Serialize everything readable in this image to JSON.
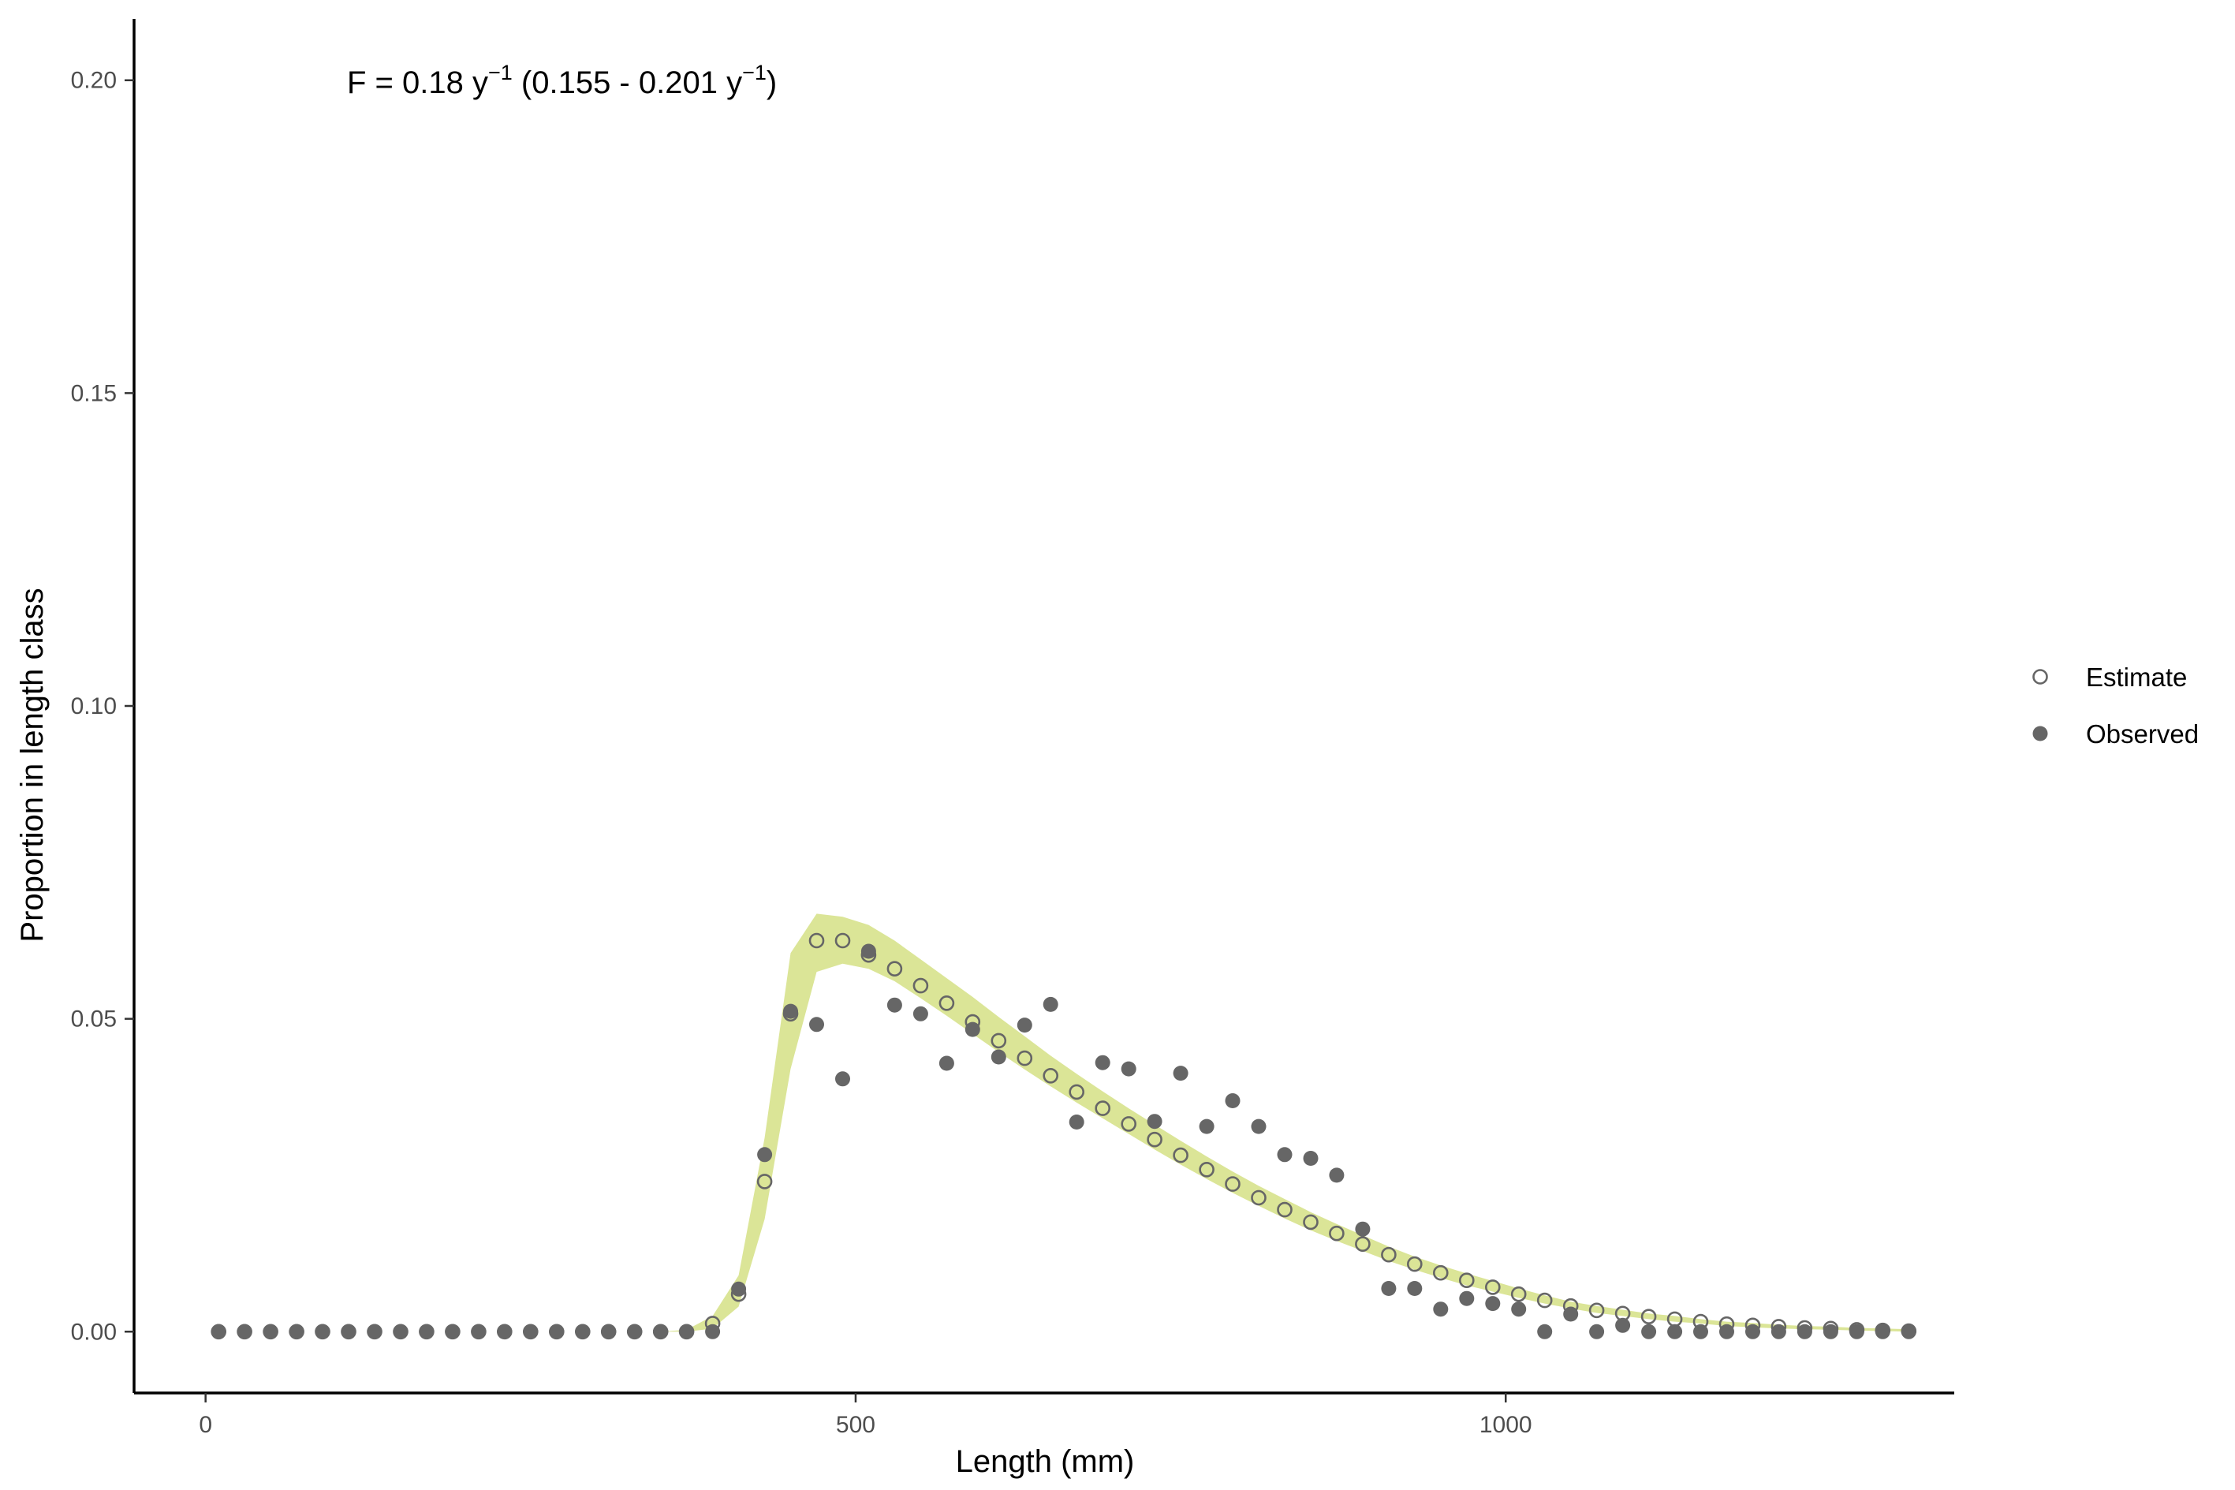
{
  "chart_data": {
    "type": "scatter",
    "annotation": {
      "prefix": "F = 0.18 y",
      "sup1": "−1",
      "middle": " (0.155 - 0.201 y",
      "sup2": "−1",
      "suffix": ")"
    },
    "xlabel": "Length (mm)",
    "ylabel": "Proportion in length class",
    "xlim": [
      -55,
      1345
    ],
    "ylim": [
      -0.0098,
      0.2098
    ],
    "xticks": [
      0,
      500,
      1000
    ],
    "yticks": [
      "0.00",
      "0.05",
      "0.10",
      "0.15",
      "0.20"
    ],
    "grid": false,
    "legend_position": "right",
    "band_color": "#dbe597",
    "point_color": "#666666",
    "legend": [
      {
        "name": "Estimate",
        "marker": "open-circle"
      },
      {
        "name": "Observed",
        "marker": "filled-circle"
      }
    ],
    "x": [
      10,
      30,
      50,
      70,
      90,
      110,
      130,
      150,
      170,
      190,
      210,
      230,
      250,
      270,
      290,
      310,
      330,
      350,
      370,
      390,
      410,
      430,
      450,
      470,
      490,
      510,
      530,
      550,
      570,
      590,
      610,
      630,
      650,
      670,
      690,
      710,
      730,
      750,
      770,
      790,
      810,
      830,
      850,
      870,
      890,
      910,
      930,
      950,
      970,
      990,
      1010,
      1030,
      1050,
      1070,
      1090,
      1110,
      1130,
      1150,
      1170,
      1190,
      1210,
      1230,
      1250,
      1270,
      1290,
      1310
    ],
    "series": [
      {
        "name": "Estimate",
        "values": [
          0,
          0,
          0,
          0,
          0,
          0,
          0,
          0,
          0,
          0,
          0,
          0,
          0,
          0,
          0,
          0,
          0,
          0,
          0,
          0.0013,
          0.006,
          0.024,
          0.0508,
          0.0625,
          0.0625,
          0.0602,
          0.058,
          0.0553,
          0.0525,
          0.0495,
          0.0465,
          0.0437,
          0.0409,
          0.0383,
          0.0357,
          0.0332,
          0.0307,
          0.0282,
          0.0259,
          0.0236,
          0.0214,
          0.0195,
          0.0175,
          0.0157,
          0.014,
          0.0123,
          0.0108,
          0.0094,
          0.0082,
          0.0071,
          0.006,
          0.005,
          0.0041,
          0.0034,
          0.0029,
          0.0024,
          0.002,
          0.0016,
          0.0012,
          0.001,
          0.0008,
          0.0006,
          0.0005,
          0.0003,
          0.0002,
          0.0001
        ]
      },
      {
        "name": "Observed",
        "values": [
          0,
          0,
          0,
          0,
          0,
          0,
          0,
          0,
          0,
          0,
          0,
          0,
          0,
          0,
          0,
          0,
          0,
          0,
          0,
          0,
          0.0068,
          0.0283,
          0.0512,
          0.0491,
          0.0404,
          0.0608,
          0.0522,
          0.0508,
          0.0429,
          0.0483,
          0.0439,
          0.049,
          0.0523,
          0.0335,
          0.043,
          0.042,
          0.0336,
          0.0413,
          0.0328,
          0.0369,
          0.0328,
          0.0283,
          0.0277,
          0.025,
          0.0164,
          0.0069,
          0.0069,
          0.0036,
          0.0053,
          0.0045,
          0.0036,
          0,
          0.0028,
          0,
          0.001,
          0,
          0,
          0,
          0,
          0,
          0,
          0,
          0,
          0,
          0,
          0
        ]
      }
    ],
    "band": {
      "name": "confidence interval",
      "lower": [
        0,
        0,
        0,
        0,
        0,
        0,
        0,
        0,
        0,
        0,
        0,
        0,
        0,
        0,
        0,
        0,
        0,
        0,
        0,
        0.0005,
        0.004,
        0.018,
        0.042,
        0.0575,
        0.0588,
        0.058,
        0.056,
        0.0533,
        0.0505,
        0.0476,
        0.0447,
        0.0419,
        0.0392,
        0.0366,
        0.0341,
        0.0316,
        0.0291,
        0.0267,
        0.0244,
        0.0222,
        0.0201,
        0.0181,
        0.0162,
        0.0145,
        0.0129,
        0.0113,
        0.0099,
        0.0086,
        0.0074,
        0.0064,
        0.0054,
        0.0045,
        0.0037,
        0.003,
        0.0025,
        0.002,
        0.0016,
        0.0013,
        0.0009,
        0.0007,
        0.0005,
        0.0004,
        0.0003,
        0.0002,
        0.0001,
        0
      ],
      "upper": [
        0,
        0,
        0,
        0,
        0,
        0,
        0,
        0,
        0,
        0,
        0,
        0,
        0,
        0,
        0,
        0,
        0,
        0,
        0.0003,
        0.0025,
        0.009,
        0.031,
        0.0605,
        0.0668,
        0.0663,
        0.065,
        0.0625,
        0.0595,
        0.0565,
        0.0535,
        0.0503,
        0.0472,
        0.0441,
        0.0412,
        0.0384,
        0.0357,
        0.0331,
        0.0305,
        0.028,
        0.0256,
        0.0233,
        0.0212,
        0.0191,
        0.0172,
        0.0154,
        0.0136,
        0.012,
        0.0106,
        0.0093,
        0.0081,
        0.0069,
        0.0058,
        0.0048,
        0.0041,
        0.0035,
        0.0029,
        0.0025,
        0.002,
        0.0016,
        0.0014,
        0.0011,
        0.0009,
        0.0008,
        0.0006,
        0.0005,
        0.0004
      ]
    }
  }
}
